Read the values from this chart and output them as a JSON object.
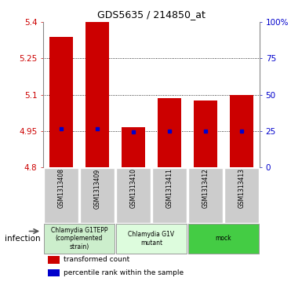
{
  "title": "GDS5635 / 214850_at",
  "samples": [
    "GSM1313408",
    "GSM1313409",
    "GSM1313410",
    "GSM1313411",
    "GSM1313412",
    "GSM1313413"
  ],
  "bar_tops": [
    5.34,
    5.4,
    4.965,
    5.085,
    5.075,
    5.1
  ],
  "bar_bottom": 4.8,
  "blue_dots": [
    4.958,
    4.958,
    4.945,
    4.95,
    4.948,
    4.95
  ],
  "ylim": [
    4.8,
    5.4
  ],
  "yticks_left": [
    4.8,
    4.95,
    5.1,
    5.25,
    5.4
  ],
  "yticks_right_labels": [
    "0",
    "25",
    "50",
    "75",
    "100%"
  ],
  "yticks_right_positions": [
    4.8,
    4.95,
    5.1,
    5.25,
    5.4
  ],
  "grid_lines": [
    4.95,
    5.1,
    5.25
  ],
  "bar_color": "#cc0000",
  "dot_color": "#0000cc",
  "bar_width": 0.65,
  "groups": [
    {
      "label": "Chlamydia G1TEPP\n(complemented\nstrain)",
      "indices": [
        0,
        1
      ],
      "color": "#cceecc"
    },
    {
      "label": "Chlamydia G1V\nmutant",
      "indices": [
        2,
        3
      ],
      "color": "#ddfcdd"
    },
    {
      "label": "mock",
      "indices": [
        4,
        5
      ],
      "color": "#44cc44"
    }
  ],
  "factor_label": "infection",
  "legend_items": [
    {
      "label": "transformed count",
      "color": "#cc0000"
    },
    {
      "label": "percentile rank within the sample",
      "color": "#0000cc"
    }
  ],
  "left_label_color": "#cc0000",
  "right_label_color": "#0000cc",
  "plot_bg_color": "#ffffff",
  "gray_bg_color": "#cccccc"
}
